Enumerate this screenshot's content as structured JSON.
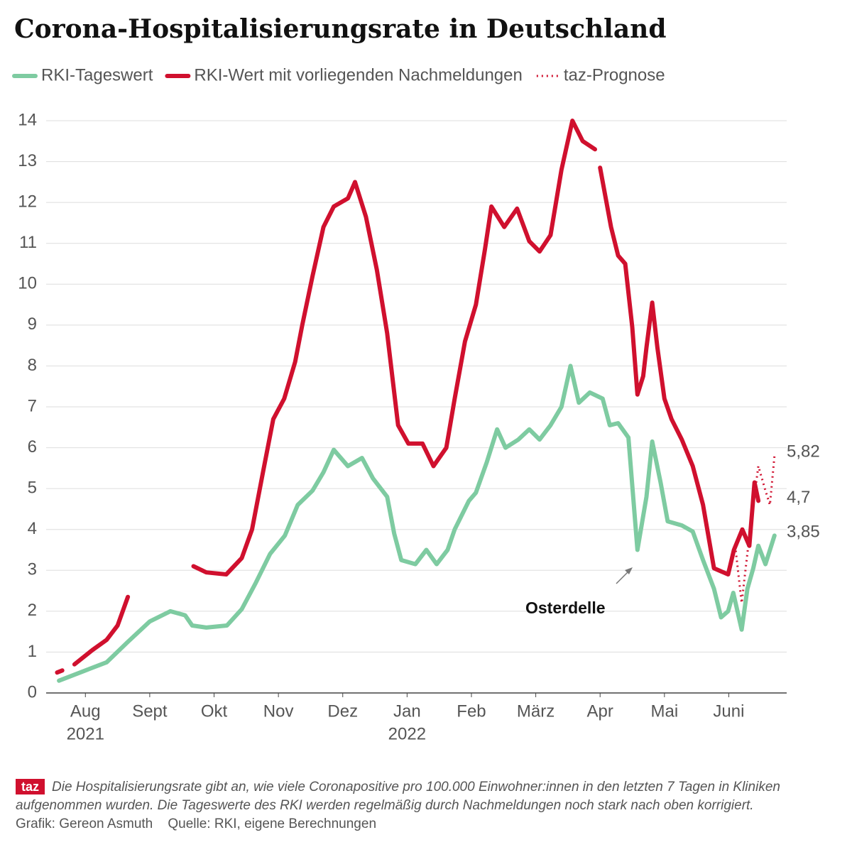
{
  "chart_data": {
    "type": "line",
    "title": "Corona-Hospitalisierungsrate in Deutschland",
    "xlim": [
      -0.61,
      10.9
    ],
    "xticks": [
      {
        "value": 0,
        "label": "Aug"
      },
      {
        "value": 1,
        "label": "Sept"
      },
      {
        "value": 2,
        "label": "Okt"
      },
      {
        "value": 3,
        "label": "Nov"
      },
      {
        "value": 4,
        "label": "Dez"
      },
      {
        "value": 5,
        "label": "Jan"
      },
      {
        "value": 6,
        "label": "Feb"
      },
      {
        "value": 7,
        "label": "März"
      },
      {
        "value": 8,
        "label": "Apr"
      },
      {
        "value": 9,
        "label": "Mai"
      },
      {
        "value": 10,
        "label": "Juni"
      }
    ],
    "year_labels": [
      {
        "value": 0,
        "label": "2021"
      },
      {
        "value": 5,
        "label": "2022"
      }
    ],
    "ylim": [
      0,
      14
    ],
    "yticks": [
      0,
      1,
      2,
      3,
      4,
      5,
      6,
      7,
      8,
      9,
      10,
      11,
      12,
      13,
      14
    ],
    "grid": true,
    "series": [
      {
        "name": "RKI-Tageswert",
        "color": "#7ecba1",
        "style": "solid",
        "x": [
          -0.41,
          0,
          0.33,
          0.66,
          1.0,
          1.32,
          1.55,
          1.66,
          1.88,
          2.2,
          2.43,
          2.65,
          2.87,
          3.1,
          3.3,
          3.53,
          3.7,
          3.86,
          4.08,
          4.3,
          4.47,
          4.69,
          4.8,
          4.91,
          5.13,
          5.3,
          5.46,
          5.63,
          5.74,
          5.96,
          6.07,
          6.24,
          6.4,
          6.53,
          6.73,
          6.9,
          7.06,
          7.23,
          7.4,
          7.54,
          7.67,
          7.84,
          8.04,
          8.15,
          8.28,
          8.44,
          8.58,
          8.72,
          8.81,
          8.94,
          9.05,
          9.27,
          9.44,
          9.6,
          9.77,
          9.88,
          9.99,
          10.07,
          10.2,
          10.29,
          10.38,
          10.46,
          10.57,
          10.71
        ],
        "values": [
          0.3,
          0.55,
          0.75,
          1.25,
          1.75,
          2.0,
          1.9,
          1.65,
          1.6,
          1.65,
          2.05,
          2.7,
          3.4,
          3.85,
          4.6,
          4.95,
          5.4,
          5.95,
          5.55,
          5.75,
          5.25,
          4.8,
          3.9,
          3.25,
          3.15,
          3.5,
          3.15,
          3.5,
          4.0,
          4.7,
          4.9,
          5.65,
          6.45,
          6.0,
          6.2,
          6.45,
          6.2,
          6.55,
          7.0,
          8.0,
          7.1,
          7.35,
          7.2,
          6.55,
          6.6,
          6.25,
          3.5,
          4.8,
          6.15,
          5.15,
          4.2,
          4.1,
          3.95,
          3.25,
          2.55,
          1.85,
          2.0,
          2.45,
          1.55,
          2.55,
          3.05,
          3.6,
          3.15,
          3.85
        ]
      },
      {
        "name": "RKI-Wert mit vorliegenden Nachmeldungen",
        "color": "#d0102e",
        "style": "solid",
        "x": [
          -0.44,
          -0.36,
          -0.3,
          -0.17,
          0.11,
          0.33,
          0.5,
          0.66,
          1.2,
          1.68,
          1.88,
          2.19,
          2.43,
          2.59,
          2.76,
          2.92,
          3.09,
          3.26,
          3.37,
          3.53,
          3.7,
          3.86,
          4.08,
          4.19,
          4.36,
          4.53,
          4.69,
          4.86,
          5.02,
          5.24,
          5.41,
          5.61,
          5.74,
          5.9,
          6.07,
          6.21,
          6.31,
          6.51,
          6.71,
          6.9,
          7.06,
          7.23,
          7.4,
          7.57,
          7.73,
          7.92,
          7.96,
          8.0,
          8.17,
          8.28,
          8.39,
          8.5,
          8.58,
          8.67,
          8.72,
          8.81,
          8.89,
          9.0,
          9.11,
          9.27,
          9.44,
          9.6,
          9.77,
          9.99,
          10.08,
          10.21,
          10.32,
          10.4,
          10.46
        ],
        "values": [
          0.5,
          0.55,
          null,
          0.7,
          1.05,
          1.3,
          1.65,
          2.35,
          null,
          3.1,
          2.95,
          2.9,
          3.3,
          4.0,
          5.4,
          6.7,
          7.2,
          8.1,
          9.0,
          10.2,
          11.4,
          11.9,
          12.1,
          12.5,
          11.65,
          10.35,
          8.8,
          6.55,
          6.1,
          6.1,
          5.55,
          6.0,
          7.2,
          8.6,
          9.5,
          10.85,
          11.9,
          11.4,
          11.85,
          11.05,
          10.8,
          11.2,
          12.8,
          14.0,
          13.5,
          13.3,
          null,
          12.85,
          11.4,
          10.7,
          10.5,
          8.95,
          7.3,
          7.75,
          8.45,
          9.55,
          8.45,
          7.2,
          6.7,
          6.2,
          5.55,
          4.6,
          3.05,
          2.9,
          3.5,
          4.0,
          3.6,
          5.15,
          4.7
        ]
      },
      {
        "name": "taz-Prognose",
        "color": "#d0102e",
        "style": "dotted",
        "x": [
          10.1,
          10.2,
          10.35,
          10.46,
          10.57,
          10.64,
          10.71
        ],
        "values": [
          3.6,
          2.2,
          4.25,
          5.55,
          4.95,
          4.6,
          5.8
        ]
      }
    ],
    "end_labels": [
      {
        "value": 5.82,
        "label": "5,82"
      },
      {
        "value": 4.7,
        "label": "4,7"
      },
      {
        "value": 3.85,
        "label": "3,85"
      }
    ],
    "annotation": "Osterdelle"
  },
  "footer": {
    "logo": "taz",
    "note": "Die Hospitalisierungsrate gibt an, wie viele Coronapositive pro 100.000 Einwohner:innen in den letzten 7 Tagen in Kliniken aufgenommen wurden. Die Tageswerte des RKI werden regelmäßig durch Nachmeldungen noch stark nach oben korrigiert.",
    "credit": "Grafik: Gereon Asmuth    Quelle: RKI, eigene Berechnungen"
  }
}
